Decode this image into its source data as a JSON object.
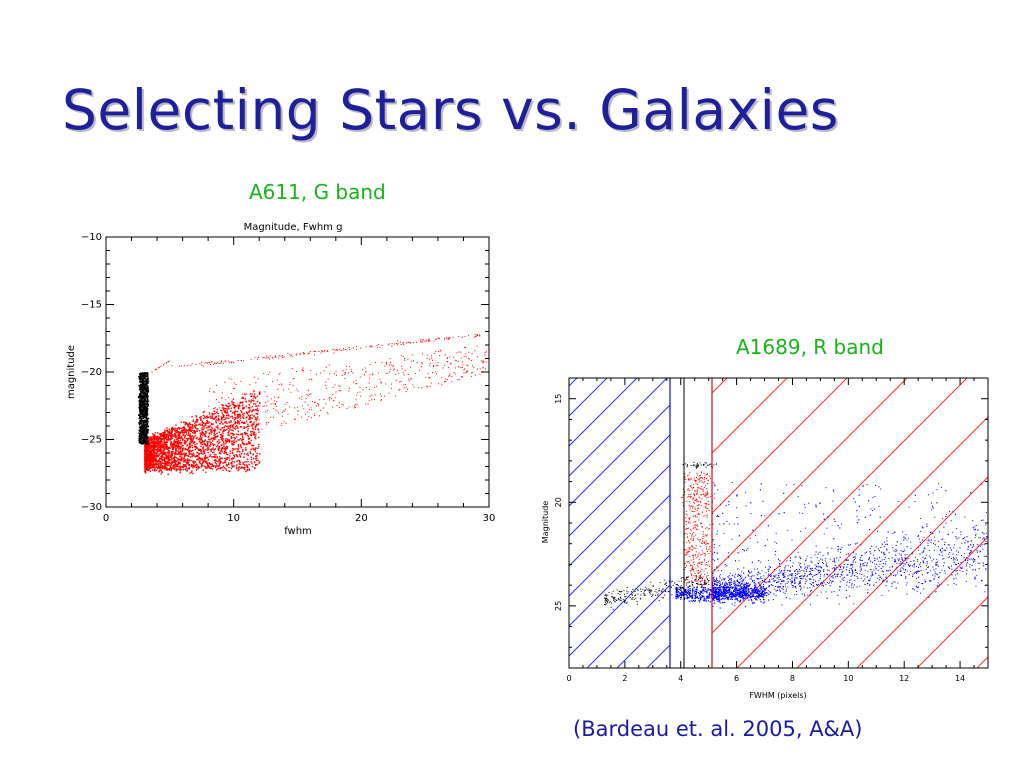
{
  "slide": {
    "title": "Selecting Stars vs. Galaxies",
    "caption_left": "A611, G band",
    "caption_right": "A1689, R band",
    "citation": "(Bardeau et. al. 2005, A&A)"
  },
  "colors": {
    "title": "#1f1f9a",
    "caption": "#18b418",
    "citation": "#1a1aa8",
    "stars": "#000000",
    "galaxies_a611": "#ff0000",
    "galaxies_a1689": "#0000ff",
    "stars_a1689": "#ff0000",
    "hatch_left": "#3030ff",
    "hatch_right": "#ff3030"
  },
  "chart_data": [
    {
      "type": "scatter",
      "title": "Magnitude, Fwhm g",
      "xlabel": "fwhm",
      "ylabel": "magnitude",
      "xlim": [
        0,
        30
      ],
      "ylim": [
        -10,
        -30
      ],
      "xticks": [
        "0",
        "10",
        "20",
        "30"
      ],
      "yticks": [
        "-10",
        "-15",
        "-20",
        "-25",
        "-30"
      ],
      "series": [
        {
          "color": "#000000",
          "description_points": [
            [
              2.8,
              -20.5
            ],
            [
              3.0,
              -22.0
            ],
            [
              3.1,
              -23.5
            ],
            [
              3.0,
              -24.5
            ],
            [
              2.9,
              -25.2
            ]
          ]
        },
        {
          "color": "#ff0000",
          "description_points": [
            [
              3.5,
              -26.5
            ],
            [
              5,
              -25
            ],
            [
              7,
              -24
            ],
            [
              10,
              -23
            ],
            [
              15,
              -21.5
            ],
            [
              20,
              -20
            ],
            [
              25,
              -19
            ],
            [
              29,
              -17.5
            ]
          ]
        }
      ],
      "grid": false
    },
    {
      "type": "scatter",
      "xlabel": "FWHM (pixels)",
      "ylabel": "Magnitude",
      "xlim": [
        0,
        15
      ],
      "ylim": [
        14,
        28
      ],
      "xticks": [
        "0",
        "2",
        "4",
        "6",
        "8",
        "10",
        "12",
        "14"
      ],
      "yticks": [
        "15",
        "20",
        "25"
      ],
      "vertical_lines": [
        3.6,
        4.1,
        5.1
      ],
      "regions": [
        {
          "x_range": [
            0,
            3.6
          ],
          "hatch_color": "#3030ff"
        },
        {
          "x_range": [
            5.1,
            15
          ],
          "hatch_color": "#ff3030"
        }
      ],
      "series": [
        {
          "color": "#ff0000",
          "description_points": [
            [
              4.2,
              19
            ],
            [
              4.4,
              21
            ],
            [
              4.5,
              22.5
            ],
            [
              4.6,
              23.5
            ]
          ]
        },
        {
          "color": "#0000ff",
          "description_points": [
            [
              5,
              24.5
            ],
            [
              7,
              24
            ],
            [
              9,
              23
            ],
            [
              11,
              23
            ],
            [
              13,
              22.8
            ],
            [
              14.5,
              22.5
            ]
          ]
        },
        {
          "color": "#000000",
          "description_points": [
            [
              2,
              25
            ],
            [
              3,
              24.8
            ],
            [
              4,
              24.5
            ]
          ]
        }
      ],
      "grid": false
    }
  ]
}
